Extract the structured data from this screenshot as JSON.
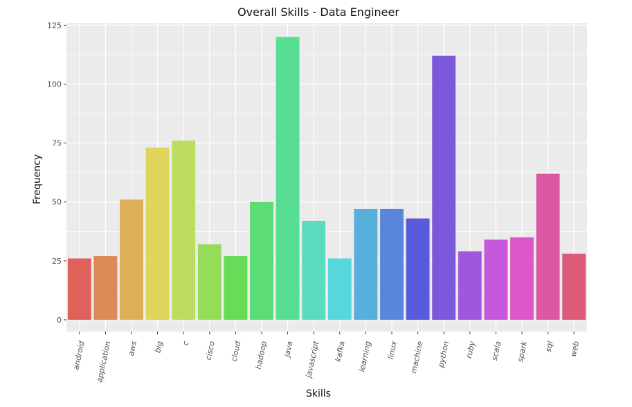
{
  "chart_data": {
    "type": "bar",
    "title": "Overall Skills - Data Engineer",
    "xlabel": "Skills",
    "ylabel": "Frequency",
    "ylim": [
      -5,
      126
    ],
    "yticks": [
      0,
      25,
      50,
      75,
      100,
      125
    ],
    "grid": true,
    "legend": "none",
    "categories": [
      "android",
      "application",
      "aws",
      "big",
      "c",
      "cisco",
      "cloud",
      "hadoop",
      "java",
      "javascript",
      "kafka",
      "learning",
      "linux",
      "machine",
      "python",
      "ruby",
      "scala",
      "spark",
      "sql",
      "web"
    ],
    "values": [
      26,
      27,
      51,
      73,
      76,
      32,
      27,
      50,
      120,
      42,
      26,
      47,
      47,
      43,
      112,
      29,
      34,
      35,
      62,
      28
    ],
    "colors": [
      "#e0615a",
      "#de8a56",
      "#ddb057",
      "#dfd45c",
      "#bcdd5e",
      "#93dd58",
      "#67dc57",
      "#5bdc76",
      "#58dd95",
      "#59dbbd",
      "#58d6dd",
      "#58afdc",
      "#5a85dc",
      "#5a5adc",
      "#7b58dc",
      "#9f58dc",
      "#c558dc",
      "#dc58c8",
      "#dc58a4",
      "#dc5a7a"
    ],
    "panel_color": "#ebebeb",
    "grid_color": "#ffffff"
  }
}
